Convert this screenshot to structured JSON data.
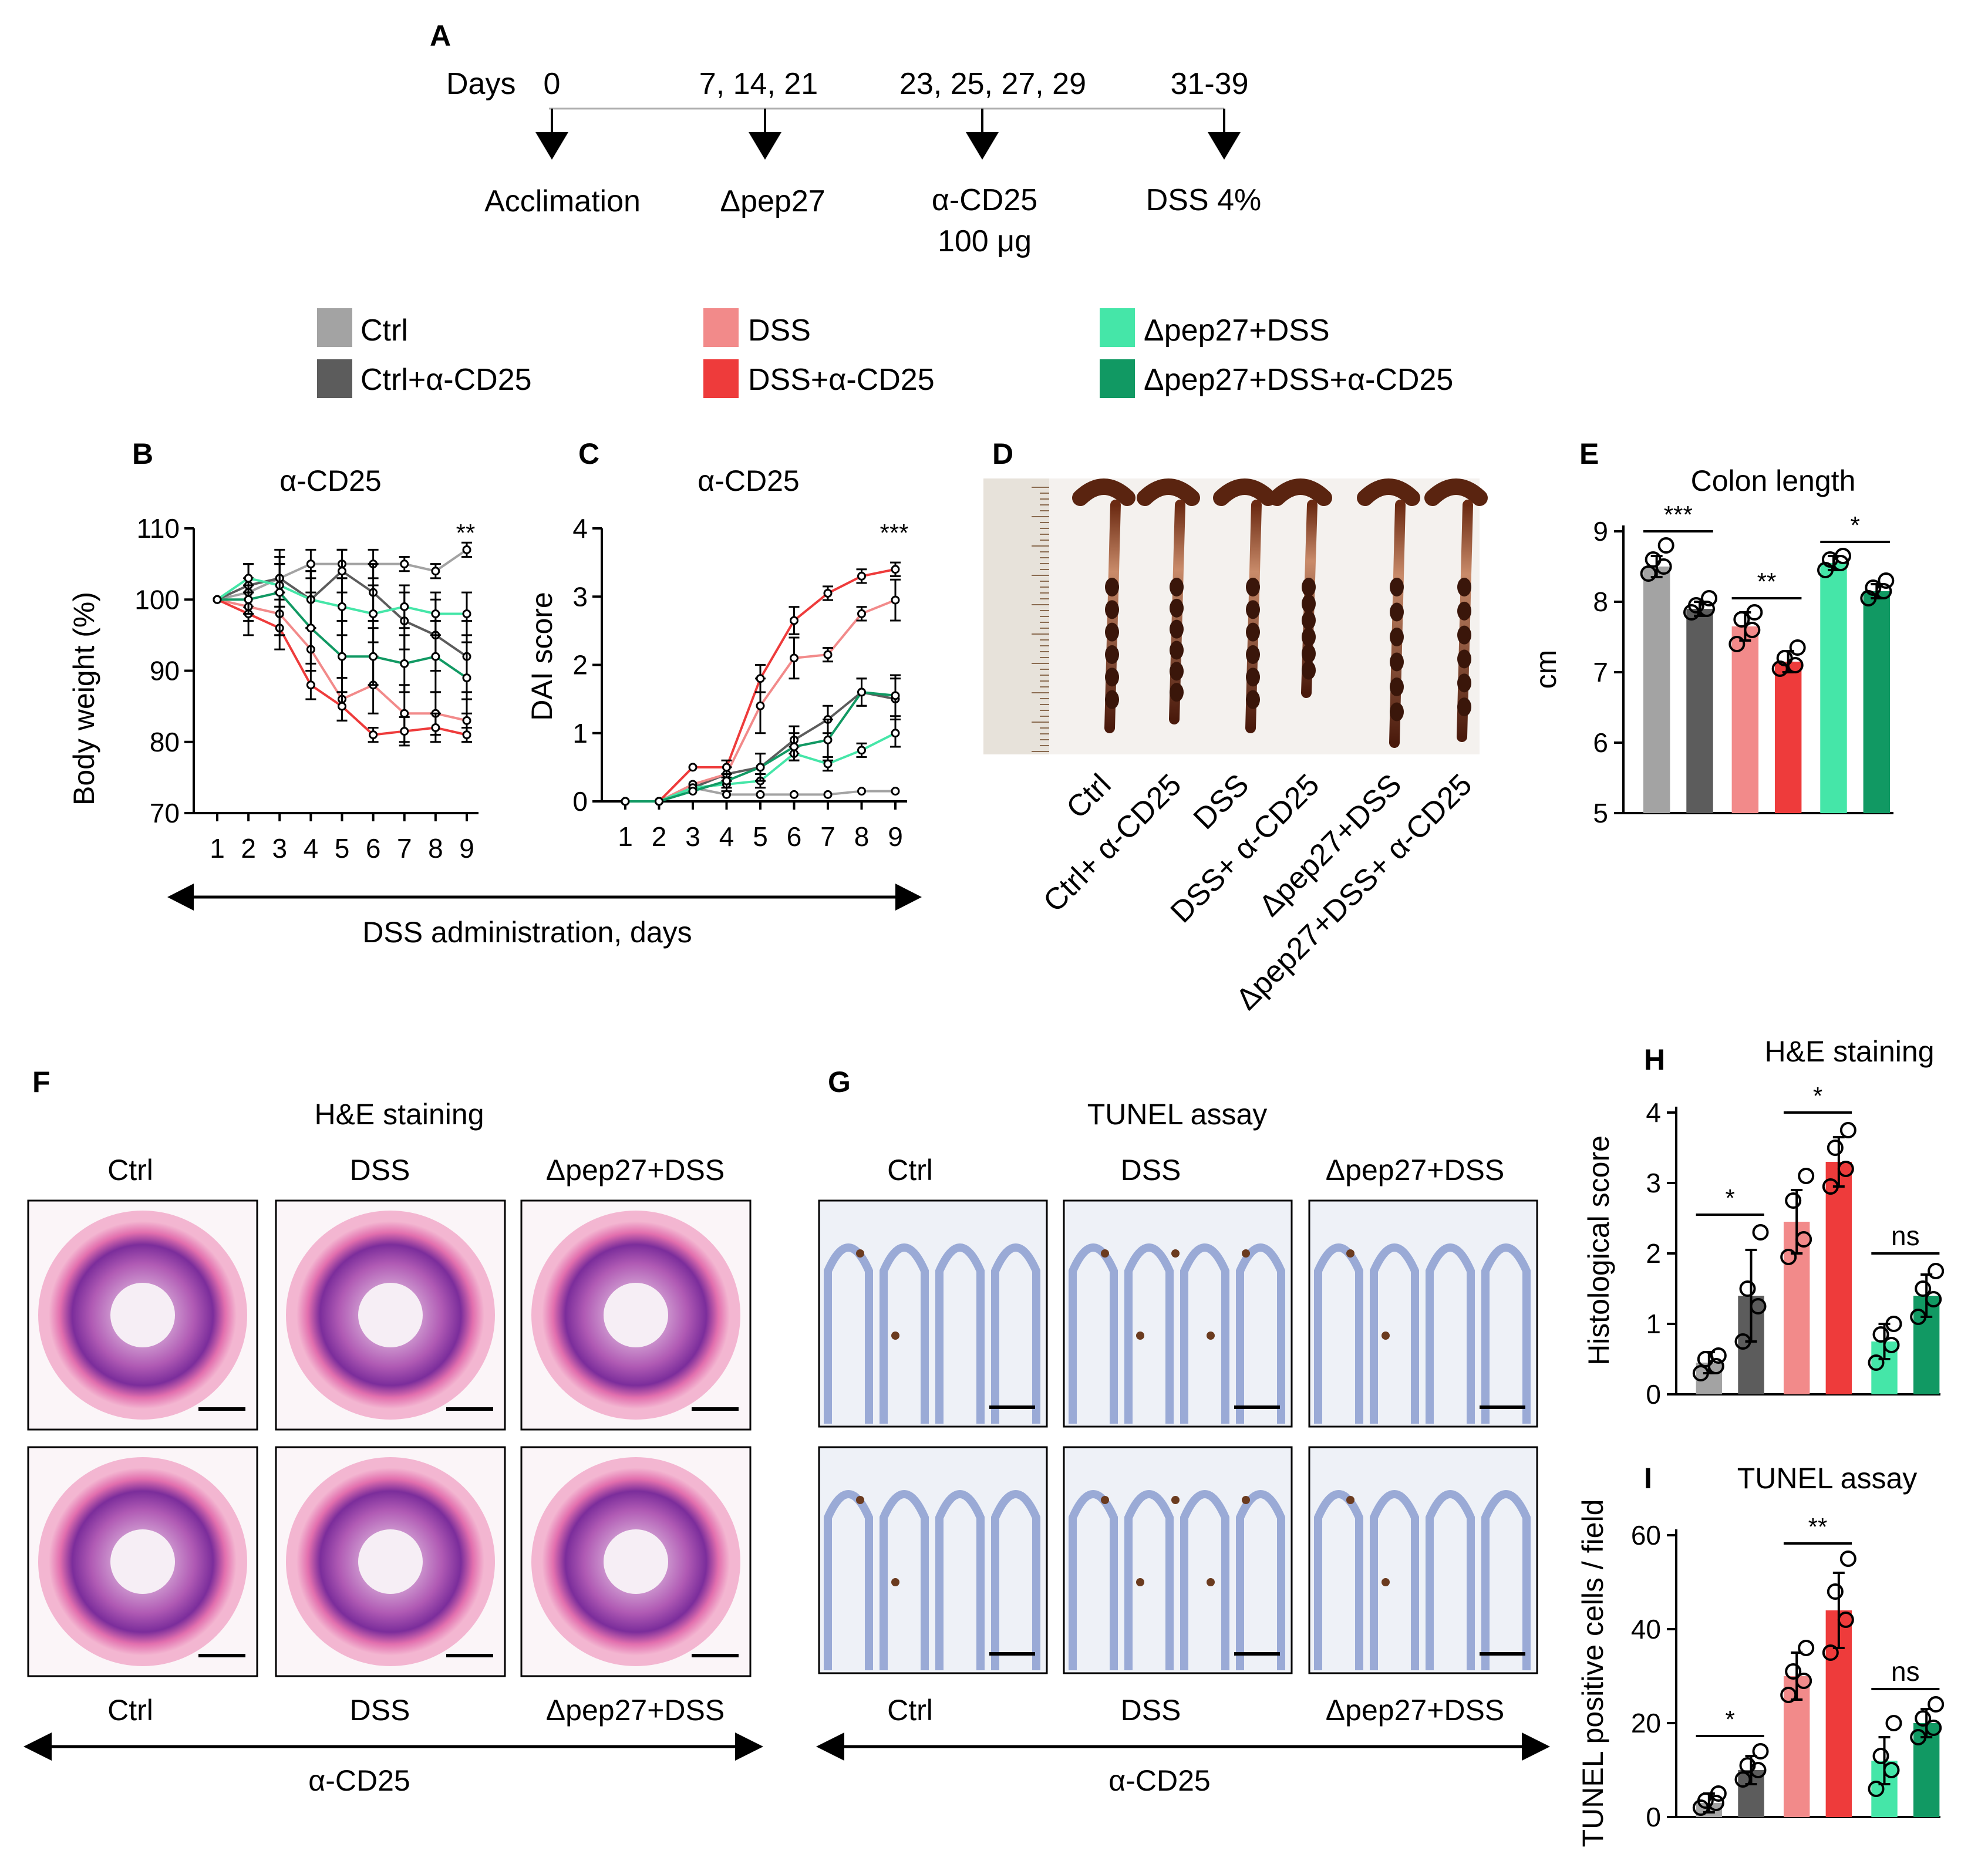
{
  "groups": [
    {
      "name": "Ctrl",
      "color": "#a3a3a3"
    },
    {
      "name": "Ctrl+α-CD25",
      "color": "#5c5c5c"
    },
    {
      "name": "DSS",
      "color": "#f28a8a"
    },
    {
      "name": "DSS+α-CD25",
      "color": "#ee3b3b"
    },
    {
      "name": "Δpep27+DSS",
      "color": "#45e6a8"
    },
    {
      "name": "Δpep27+DSS+α-CD25",
      "color": "#119963"
    }
  ],
  "panelA": {
    "label": "A",
    "days_label": "Days",
    "events": [
      {
        "day": "0",
        "name": "Acclimation",
        "sub": ""
      },
      {
        "day": "7, 14, 21",
        "name": "Δpep27",
        "sub": ""
      },
      {
        "day": "23, 25, 27, 29",
        "name": "α-CD25",
        "sub": "100 μg"
      },
      {
        "day": "31-39",
        "name": "DSS 4%",
        "sub": ""
      }
    ]
  },
  "panelB": {
    "label": "B",
    "title": "α-CD25",
    "ylabel": "Body weight (%)"
  },
  "panelC": {
    "label": "C",
    "title": "α-CD25",
    "ylabel": "DAI score"
  },
  "bc_xlabel": "DSS administration, days",
  "panelD": {
    "label": "D",
    "sample_labels": [
      "Ctrl",
      "Ctrl+ α-CD25",
      "DSS",
      "DSS+ α-CD25",
      "Δpep27+DSS",
      "Δpep27+DSS+ α-CD25"
    ]
  },
  "panelE": {
    "label": "E",
    "title": "Colon length",
    "ylabel": "cm"
  },
  "panelF": {
    "label": "F",
    "title": "H&E staining",
    "cols": [
      "Ctrl",
      "DSS",
      "Δpep27+DSS"
    ],
    "bottom_cols": [
      "Ctrl",
      "DSS",
      "Δpep27+DSS"
    ],
    "arrow_label": "α-CD25"
  },
  "panelG": {
    "label": "G",
    "title": "TUNEL assay",
    "cols": [
      "Ctrl",
      "DSS",
      "Δpep27+DSS"
    ],
    "bottom_cols": [
      "Ctrl",
      "DSS",
      "Δpep27+DSS"
    ],
    "arrow_label": "α-CD25"
  },
  "panelH": {
    "label": "H",
    "title": "H&E staining",
    "ylabel": "Histological score"
  },
  "panelI": {
    "label": "I",
    "title": "TUNEL assay",
    "ylabel": "TUNEL positive cells / field"
  },
  "chart_data": [
    {
      "id": "B",
      "type": "line",
      "title": "α-CD25",
      "xlabel": "DSS administration, days",
      "ylabel": "Body weight (%)",
      "x": [
        1,
        2,
        3,
        4,
        5,
        6,
        7,
        8,
        9
      ],
      "ylim": [
        70,
        110
      ],
      "yticks": [
        70,
        80,
        90,
        100,
        110
      ],
      "series": [
        {
          "name": "Ctrl",
          "values": [
            100,
            101,
            103,
            105,
            105,
            105,
            105,
            104,
            107
          ],
          "err": [
            0,
            2,
            2,
            2,
            2,
            2,
            1,
            1,
            1
          ]
        },
        {
          "name": "Ctrl+α-CD25",
          "values": [
            100,
            102,
            103,
            100,
            104,
            101,
            97,
            95,
            92
          ],
          "err": [
            0,
            3,
            3,
            4,
            3,
            4,
            4,
            5,
            5
          ]
        },
        {
          "name": "DSS",
          "values": [
            100,
            99,
            98,
            93,
            86,
            88,
            84,
            84,
            83
          ],
          "err": [
            0,
            2,
            3,
            3,
            3,
            4,
            4,
            3,
            3
          ]
        },
        {
          "name": "DSS+α-CD25",
          "values": [
            100,
            98,
            96,
            88,
            85,
            81,
            81.5,
            82,
            81
          ],
          "err": [
            0,
            3,
            3,
            2,
            2,
            1,
            2,
            2,
            1
          ]
        },
        {
          "name": "Δpep27+DSS",
          "values": [
            100,
            103,
            102,
            100,
            99,
            98,
            99,
            98,
            98
          ],
          "err": [
            0,
            2,
            3,
            4,
            4,
            4,
            3,
            3,
            3
          ]
        },
        {
          "name": "Δpep27+DSS+α-CD25",
          "values": [
            100,
            100,
            101,
            96,
            92,
            92,
            91,
            92,
            89
          ],
          "err": [
            0,
            2,
            6,
            5,
            5,
            4,
            4,
            5,
            5
          ]
        }
      ],
      "annotations": [
        {
          "x": 9,
          "text": "**"
        }
      ]
    },
    {
      "id": "C",
      "type": "line",
      "title": "α-CD25",
      "xlabel": "DSS administration, days",
      "ylabel": "DAI score",
      "x": [
        1,
        2,
        3,
        4,
        5,
        6,
        7,
        8,
        9
      ],
      "ylim": [
        0,
        4
      ],
      "yticks": [
        0,
        1,
        2,
        3,
        4
      ],
      "series": [
        {
          "name": "Ctrl",
          "values": [
            0,
            0,
            0.2,
            0.1,
            0.1,
            0.1,
            0.1,
            0.15,
            0.15
          ],
          "err": [
            0,
            0,
            0,
            0,
            0,
            0,
            0,
            0,
            0
          ]
        },
        {
          "name": "Ctrl+α-CD25",
          "values": [
            0,
            0,
            0.2,
            0.4,
            0.5,
            0.9,
            1.2,
            1.6,
            1.5
          ],
          "err": [
            0,
            0,
            0,
            0.1,
            0.2,
            0.2,
            0.2,
            0.2,
            0.3
          ]
        },
        {
          "name": "DSS",
          "values": [
            0,
            0,
            0.25,
            0.4,
            1.4,
            2.1,
            2.15,
            2.75,
            2.95
          ],
          "err": [
            0,
            0,
            0,
            0.1,
            0.4,
            0.3,
            0.1,
            0.1,
            0.3
          ]
        },
        {
          "name": "DSS+α-CD25",
          "values": [
            0,
            0,
            0.5,
            0.5,
            1.8,
            2.65,
            3.05,
            3.3,
            3.4
          ],
          "err": [
            0,
            0,
            0,
            0.1,
            0.2,
            0.2,
            0.1,
            0.1,
            0.1
          ]
        },
        {
          "name": "Δpep27+DSS",
          "values": [
            0,
            0,
            0.2,
            0.25,
            0.3,
            0.7,
            0.55,
            0.75,
            1.0
          ],
          "err": [
            0,
            0,
            0,
            0.1,
            0.1,
            0.1,
            0.1,
            0.1,
            0.2
          ]
        },
        {
          "name": "Δpep27+DSS+α-CD25",
          "values": [
            0,
            0,
            0.15,
            0.3,
            0.5,
            0.8,
            0.9,
            1.6,
            1.55
          ],
          "err": [
            0,
            0,
            0,
            0.1,
            0.2,
            0.2,
            0.3,
            0.2,
            0.3
          ]
        }
      ],
      "annotations": [
        {
          "x": 9,
          "text": "***"
        }
      ]
    },
    {
      "id": "E",
      "type": "bar",
      "title": "Colon length",
      "ylabel": "cm",
      "ylim": [
        5,
        9
      ],
      "yticks": [
        5,
        6,
        7,
        8,
        9
      ],
      "categories": [
        "Ctrl",
        "Ctrl+α-CD25",
        "DSS",
        "DSS+α-CD25",
        "Δpep27+DSS",
        "Δpep27+DSS+α-CD25"
      ],
      "values": [
        8.5,
        7.9,
        7.65,
        7.15,
        8.55,
        8.15
      ],
      "err": [
        0.15,
        0.1,
        0.2,
        0.15,
        0.1,
        0.1
      ],
      "points": [
        [
          8.4,
          8.5,
          8.6,
          8.8
        ],
        [
          7.85,
          7.9,
          7.95,
          8.05
        ],
        [
          7.4,
          7.6,
          7.75,
          7.85
        ],
        [
          7.05,
          7.1,
          7.2,
          7.35
        ],
        [
          8.45,
          8.55,
          8.6,
          8.65
        ],
        [
          8.05,
          8.15,
          8.2,
          8.3
        ]
      ],
      "significance": [
        {
          "from": 0,
          "to": 1,
          "text": "***"
        },
        {
          "from": 2,
          "to": 3,
          "text": "**"
        },
        {
          "from": 4,
          "to": 5,
          "text": "*"
        }
      ]
    },
    {
      "id": "H",
      "type": "bar",
      "title": "H&E staining",
      "ylabel": "Histological score",
      "ylim": [
        0,
        4
      ],
      "yticks": [
        0,
        1,
        2,
        3,
        4
      ],
      "categories": [
        "Ctrl",
        "Ctrl+α-CD25",
        "DSS",
        "DSS+α-CD25",
        "Δpep27+DSS",
        "Δpep27+DSS+α-CD25"
      ],
      "values": [
        0.45,
        1.4,
        2.45,
        3.3,
        0.75,
        1.4
      ],
      "err": [
        0.15,
        0.65,
        0.45,
        0.35,
        0.25,
        0.3
      ],
      "points": [
        [
          0.3,
          0.4,
          0.5,
          0.55
        ],
        [
          0.75,
          1.25,
          1.5,
          2.3
        ],
        [
          1.95,
          2.2,
          2.75,
          3.1
        ],
        [
          2.95,
          3.2,
          3.5,
          3.75
        ],
        [
          0.45,
          0.7,
          0.85,
          1.0
        ],
        [
          1.1,
          1.35,
          1.5,
          1.75
        ]
      ],
      "significance": [
        {
          "from": 0,
          "to": 1,
          "text": "*"
        },
        {
          "from": 2,
          "to": 3,
          "text": "*"
        },
        {
          "from": 4,
          "to": 5,
          "text": "ns"
        }
      ]
    },
    {
      "id": "I",
      "type": "bar",
      "title": "TUNEL assay",
      "ylabel": "TUNEL positive cells / field",
      "ylim": [
        0,
        60
      ],
      "yticks": [
        0,
        20,
        40,
        60
      ],
      "categories": [
        "Ctrl",
        "Ctrl+α-CD25",
        "DSS",
        "DSS+α-CD25",
        "Δpep27+DSS",
        "Δpep27+DSS+α-CD25"
      ],
      "values": [
        3,
        10,
        30,
        44,
        12,
        20
      ],
      "err": [
        2,
        3,
        5,
        8,
        5,
        3
      ],
      "points": [
        [
          2,
          3,
          3.5,
          5
        ],
        [
          8,
          10,
          11,
          14
        ],
        [
          26,
          29,
          31,
          36
        ],
        [
          35,
          42,
          48,
          55
        ],
        [
          6,
          10,
          13,
          20
        ],
        [
          17,
          19,
          21,
          24
        ]
      ],
      "significance": [
        {
          "from": 0,
          "to": 1,
          "text": "*"
        },
        {
          "from": 2,
          "to": 3,
          "text": "**"
        },
        {
          "from": 4,
          "to": 5,
          "text": "ns"
        }
      ]
    }
  ]
}
